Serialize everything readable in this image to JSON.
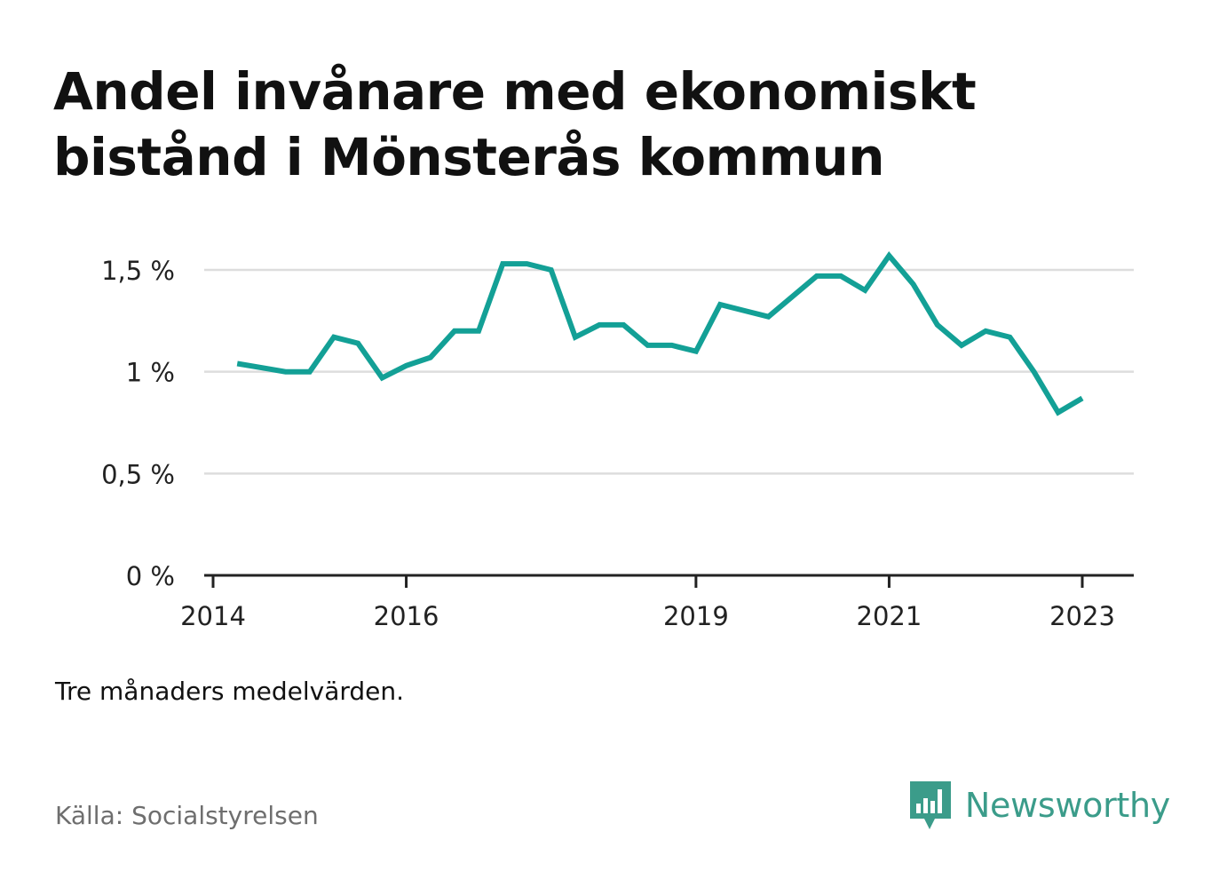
{
  "title": "Andel invånare med ekonomiskt bistånd i Mönsterås kommun",
  "note": "Tre månaders medelvärden.",
  "source": "Källa: Socialstyrelsen",
  "brand": {
    "name": "Newsworthy",
    "icon": "newsworthy-chat-bars-icon",
    "color": "#3b9c8a"
  },
  "colors": {
    "line": "#13a096",
    "grid": "#dddddd",
    "axis": "#222222"
  },
  "chart_data": {
    "type": "line",
    "title": "Andel invånare med ekonomiskt bistånd i Mönsterås kommun",
    "xlabel": "",
    "ylabel": "",
    "y_unit": "%",
    "xlim": [
      "2014-01",
      "2023-08"
    ],
    "ylim": [
      0,
      1.5
    ],
    "grid": true,
    "x_ticks": [
      {
        "date": "2014-01",
        "label": "2014"
      },
      {
        "date": "2016-01",
        "label": "2016"
      },
      {
        "date": "2019-01",
        "label": "2019"
      },
      {
        "date": "2021-01",
        "label": "2021"
      },
      {
        "date": "2023-01",
        "label": "2023"
      }
    ],
    "y_ticks": [
      {
        "value": 0,
        "label": "0 %"
      },
      {
        "value": 0.5,
        "label": "0,5 %"
      },
      {
        "value": 1,
        "label": "1 %"
      },
      {
        "value": 1.5,
        "label": "1,5 %"
      }
    ],
    "series": [
      {
        "points": [
          {
            "x": "2014-04",
            "y": 1.04
          },
          {
            "x": "2014-07",
            "y": 1.02
          },
          {
            "x": "2014-10",
            "y": 1.0
          },
          {
            "x": "2015-01",
            "y": 1.0
          },
          {
            "x": "2015-04",
            "y": 1.17
          },
          {
            "x": "2015-07",
            "y": 1.14
          },
          {
            "x": "2015-10",
            "y": 0.97
          },
          {
            "x": "2016-01",
            "y": 1.03
          },
          {
            "x": "2016-04",
            "y": 1.07
          },
          {
            "x": "2016-07",
            "y": 1.2
          },
          {
            "x": "2016-10",
            "y": 1.2
          },
          {
            "x": "2017-01",
            "y": 1.53
          },
          {
            "x": "2017-04",
            "y": 1.53
          },
          {
            "x": "2017-07",
            "y": 1.5
          },
          {
            "x": "2017-10",
            "y": 1.17
          },
          {
            "x": "2018-01",
            "y": 1.23
          },
          {
            "x": "2018-04",
            "y": 1.23
          },
          {
            "x": "2018-07",
            "y": 1.13
          },
          {
            "x": "2018-10",
            "y": 1.13
          },
          {
            "x": "2019-01",
            "y": 1.1
          },
          {
            "x": "2019-04",
            "y": 1.33
          },
          {
            "x": "2019-07",
            "y": 1.3
          },
          {
            "x": "2019-10",
            "y": 1.27
          },
          {
            "x": "2020-01",
            "y": 1.37
          },
          {
            "x": "2020-04",
            "y": 1.47
          },
          {
            "x": "2020-07",
            "y": 1.47
          },
          {
            "x": "2020-10",
            "y": 1.4
          },
          {
            "x": "2021-01",
            "y": 1.57
          },
          {
            "x": "2021-04",
            "y": 1.43
          },
          {
            "x": "2021-07",
            "y": 1.23
          },
          {
            "x": "2021-10",
            "y": 1.13
          },
          {
            "x": "2022-01",
            "y": 1.2
          },
          {
            "x": "2022-04",
            "y": 1.17
          },
          {
            "x": "2022-07",
            "y": 1.0
          },
          {
            "x": "2022-10",
            "y": 0.8
          },
          {
            "x": "2023-01",
            "y": 0.87
          }
        ]
      }
    ]
  }
}
